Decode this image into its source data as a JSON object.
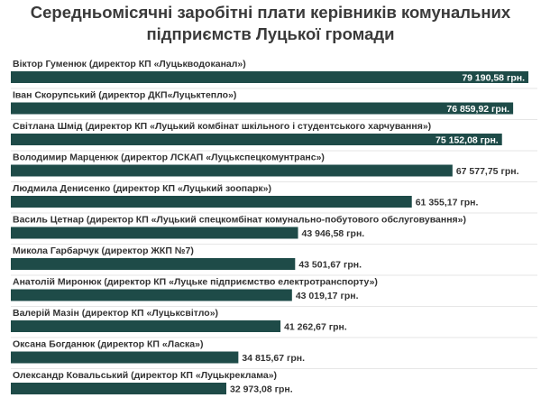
{
  "chart_data": {
    "type": "bar",
    "orientation": "horizontal",
    "title": "Середньомісячні заробітні плати керівників комунальних підприємств Луцької громади",
    "categories": [
      "Віктор Гуменюк (директор КП «Луцькводоканал»)",
      "Іван Скорупський (директор ДКП«Луцьктепло»)",
      "Світлана Шмід (директор КП «Луцький комбінат шкільного і студентського харчування»)",
      "Володимир Марценюк (директор ЛСКАП «Луцькспецкомунтранс»)",
      "Людмила Денисенко (директор КП «Луцький зоопарк»)",
      "Василь Цетнар (директор КП «Луцький спецкомбінат комунально-побутового обслуговування»)",
      "Микола Гарбарчук (директор ЖКП №7)",
      "Анатолій Миронюк (директор КП «Луцьке підприємство електротранспорту»)",
      "Валерій Мазін (директор КП «Луцьксвітло»)",
      "Оксана Богданюк (директор КП «Ласка»)",
      "Олександр Ковальський (директор КП «Луцькреклама»)"
    ],
    "values": [
      79190.58,
      76859.92,
      75152.08,
      67577.75,
      61355.17,
      43946.58,
      43501.67,
      43019.17,
      41262.67,
      34815.67,
      32973.08
    ],
    "value_labels": [
      "79 190,58 грн.",
      "76 859,92 грн.",
      "75 152,08 грн.",
      "67 577,75 грн.",
      "61 355,17 грн.",
      "43 946,58 грн.",
      "43 501,67 грн.",
      "43 019,17 грн.",
      "41 262,67 грн.",
      "34 815,67 грн.",
      "32 973,08 грн."
    ],
    "color": "#1e4b48"
  }
}
